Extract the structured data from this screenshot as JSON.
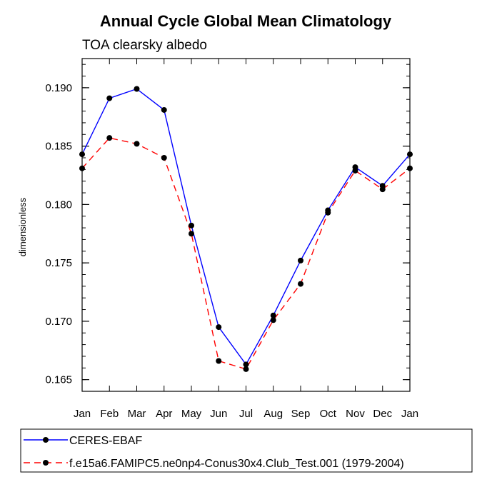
{
  "chart_data": {
    "type": "line",
    "title": "Annual Cycle Global Mean Climatology",
    "subtitle": "TOA clearsky albedo",
    "xlabel": "",
    "ylabel": "dimensionless",
    "categories": [
      "Jan",
      "Feb",
      "Mar",
      "Apr",
      "May",
      "Jun",
      "Jul",
      "Aug",
      "Sep",
      "Oct",
      "Nov",
      "Dec",
      "Jan"
    ],
    "ylim": [
      0.164,
      0.1925
    ],
    "yticks": [
      "0.165",
      "0.170",
      "0.175",
      "0.180",
      "0.185",
      "0.190"
    ],
    "series": [
      {
        "name": "CERES-EBAF",
        "color": "#0000ff",
        "dash": "solid",
        "values": [
          0.1843,
          0.1891,
          0.1899,
          0.1881,
          0.1782,
          0.1695,
          0.1663,
          0.1705,
          0.1752,
          0.1795,
          0.1832,
          0.1816,
          0.1843
        ]
      },
      {
        "name": "f.e15a6.FAMIPC5.ne0np4-Conus30x4.Club_Test.001 (1979-2004)",
        "color": "#ff0000",
        "dash": "dashed",
        "values": [
          0.1831,
          0.1857,
          0.1852,
          0.184,
          0.1775,
          0.1666,
          0.1659,
          0.1701,
          0.1732,
          0.1793,
          0.1829,
          0.1813,
          0.1831
        ]
      }
    ],
    "marker_color": "#000000",
    "legend_position": "bottom"
  }
}
